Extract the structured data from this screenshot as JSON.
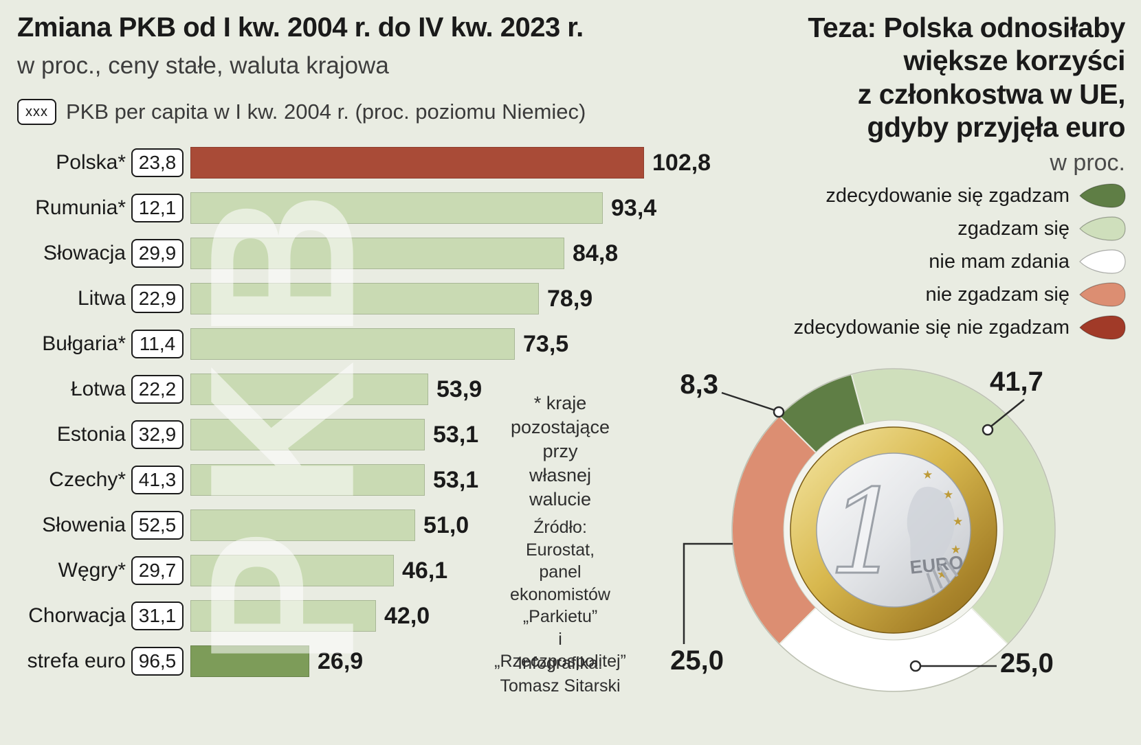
{
  "page": {
    "background_color": "#e9ece2"
  },
  "chart_data": [
    {
      "type": "bar",
      "orientation": "horizontal",
      "title": "Zmiana PKB od I kw. 2004 r. do IV kw. 2023 r.",
      "subtitle": "w proc., ceny stałe, waluta krajowa",
      "badge_legend_box": "xxx",
      "badge_legend_text": "PKB per capita w I kw. 2004 r. (proc. poziomu Niemiec)",
      "watermark": "PKB",
      "xlim": [
        0,
        110
      ],
      "categories": [
        "Polska*",
        "Rumunia*",
        "Słowacja",
        "Litwa",
        "Bułgaria*",
        "Łotwa",
        "Estonia",
        "Czechy*",
        "Słowenia",
        "Węgry*",
        "Chorwacja",
        "strefa euro"
      ],
      "values": [
        102.8,
        93.4,
        84.8,
        78.9,
        73.5,
        53.9,
        53.1,
        53.1,
        51.0,
        46.1,
        42.0,
        26.9
      ],
      "value_labels": [
        "102,8",
        "93,4",
        "84,8",
        "78,9",
        "73,5",
        "53,9",
        "53,1",
        "53,1",
        "51,0",
        "46,1",
        "42,0",
        "26,9"
      ],
      "per_capita_labels": [
        "23,8",
        "12,1",
        "29,9",
        "22,9",
        "11,4",
        "22,2",
        "32,9",
        "41,3",
        "52,5",
        "29,7",
        "31,1",
        "96,5"
      ],
      "bar_colors": [
        "#a94b37",
        "#c9dab3",
        "#c9dab3",
        "#c9dab3",
        "#c9dab3",
        "#c9dab3",
        "#c9dab3",
        "#c9dab3",
        "#c9dab3",
        "#c9dab3",
        "#c9dab3",
        "#7d9c59"
      ],
      "footnote": "* kraje\npozostające\nprzy\nwłasnej\nwalucie",
      "source": "Źródło:\nEurostat,\npanel\nekonomistów\n„Parkietu”\ni „Rzeczpospolitej”",
      "credit": "Infografika:\nTomasz Sitarski"
    },
    {
      "type": "pie",
      "subtype": "donut",
      "title": "Teza: Polska odnosiłaby\nwiększe korzyści\nz członkostwa w UE,\ngdyby przyjęła euro",
      "unit": "w proc.",
      "start_angle_deg": 315,
      "segments": [
        {
          "label": "zdecydowanie się zgadzam",
          "value": 8.3,
          "display": "8,3",
          "color": "#5f7e45"
        },
        {
          "label": "zgadzam się",
          "value": 41.7,
          "display": "41,7",
          "color": "#cfdfbc"
        },
        {
          "label": "nie mam zdania",
          "value": 25.0,
          "display": "25,0",
          "color": "#ffffff"
        },
        {
          "label": "nie zgadzam się",
          "value": 25.0,
          "display": "25,0",
          "color": "#dc8e72"
        },
        {
          "label": "zdecydowanie się nie zgadzam",
          "value": 0,
          "display": "",
          "color": "#a13a28"
        }
      ],
      "center_image": "1-euro-coin",
      "coin": {
        "numeral": "1",
        "word": "EURO"
      }
    }
  ]
}
